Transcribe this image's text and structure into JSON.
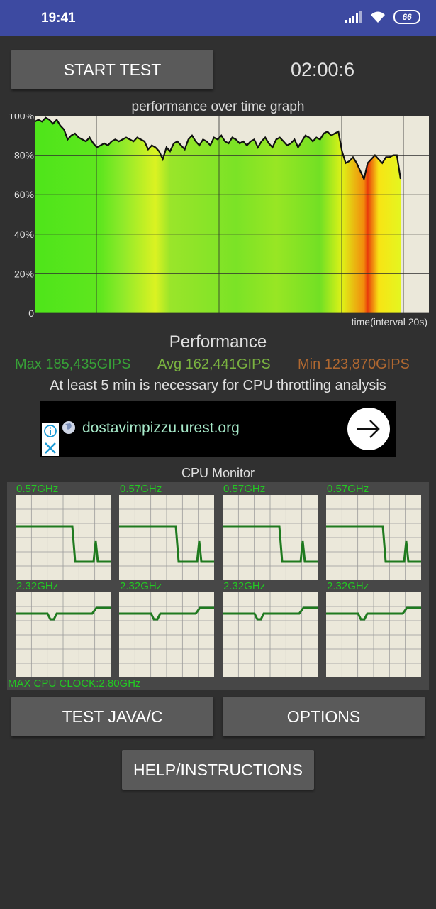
{
  "status_bar": {
    "time": "19:41",
    "battery": "66"
  },
  "controls": {
    "start_label": "START TEST",
    "timer": "02:00:6",
    "test_java_label": "TEST JAVA/C",
    "options_label": "OPTIONS",
    "help_label": "HELP/INSTRUCTIONS"
  },
  "graph": {
    "title": "performance over time graph",
    "x_caption": "time(interval 20s)",
    "y_ticks": [
      "100%",
      "80%",
      "60%",
      "40%",
      "20%",
      "0"
    ]
  },
  "chart_data": {
    "type": "line",
    "title": "performance over time graph",
    "xlabel": "time(interval 20s)",
    "ylabel": "",
    "ylim": [
      0,
      100
    ],
    "grid": true,
    "series": [
      {
        "values": [
          97,
          98,
          97,
          99,
          98,
          96,
          98,
          95,
          93,
          88,
          90,
          91,
          89,
          88,
          87,
          89,
          86,
          84,
          85,
          86,
          85,
          87,
          88,
          87,
          88,
          89,
          88,
          87,
          89,
          88,
          87,
          83,
          85,
          84,
          82,
          78,
          84,
          82,
          86,
          87,
          85,
          83,
          88,
          90,
          87,
          85,
          88,
          87,
          85,
          89,
          88,
          90,
          87,
          86,
          89,
          88,
          86,
          87,
          85,
          87,
          88,
          84,
          87,
          89,
          86,
          84,
          88,
          89,
          87,
          85,
          86,
          88,
          84,
          87,
          90,
          89,
          87,
          89,
          88,
          91,
          92,
          90,
          91,
          92,
          82,
          76,
          77,
          79,
          76,
          72,
          68,
          76,
          78,
          80,
          78,
          76,
          79,
          79,
          80,
          80,
          68
        ]
      }
    ]
  },
  "performance": {
    "title": "Performance",
    "max": "Max 185,435GIPS",
    "avg": "Avg 162,441GIPS",
    "min": "Min 123,870GIPS",
    "note": "At least 5 min is necessary for CPU throttling analysis",
    "colors": {
      "max": "#37a037",
      "avg": "#7ab340",
      "min": "#b06830"
    }
  },
  "ad": {
    "url": "dostavimpizzu.urest.org"
  },
  "cpu_monitor": {
    "title": "CPU Monitor",
    "cores": [
      {
        "freq": "0.57GHz"
      },
      {
        "freq": "0.57GHz"
      },
      {
        "freq": "0.57GHz"
      },
      {
        "freq": "0.57GHz"
      },
      {
        "freq": "2.32GHz"
      },
      {
        "freq": "2.32GHz"
      },
      {
        "freq": "2.32GHz"
      },
      {
        "freq": "2.32GHz"
      }
    ],
    "max_clock": "MAX CPU CLOCK:2.80GHz"
  }
}
